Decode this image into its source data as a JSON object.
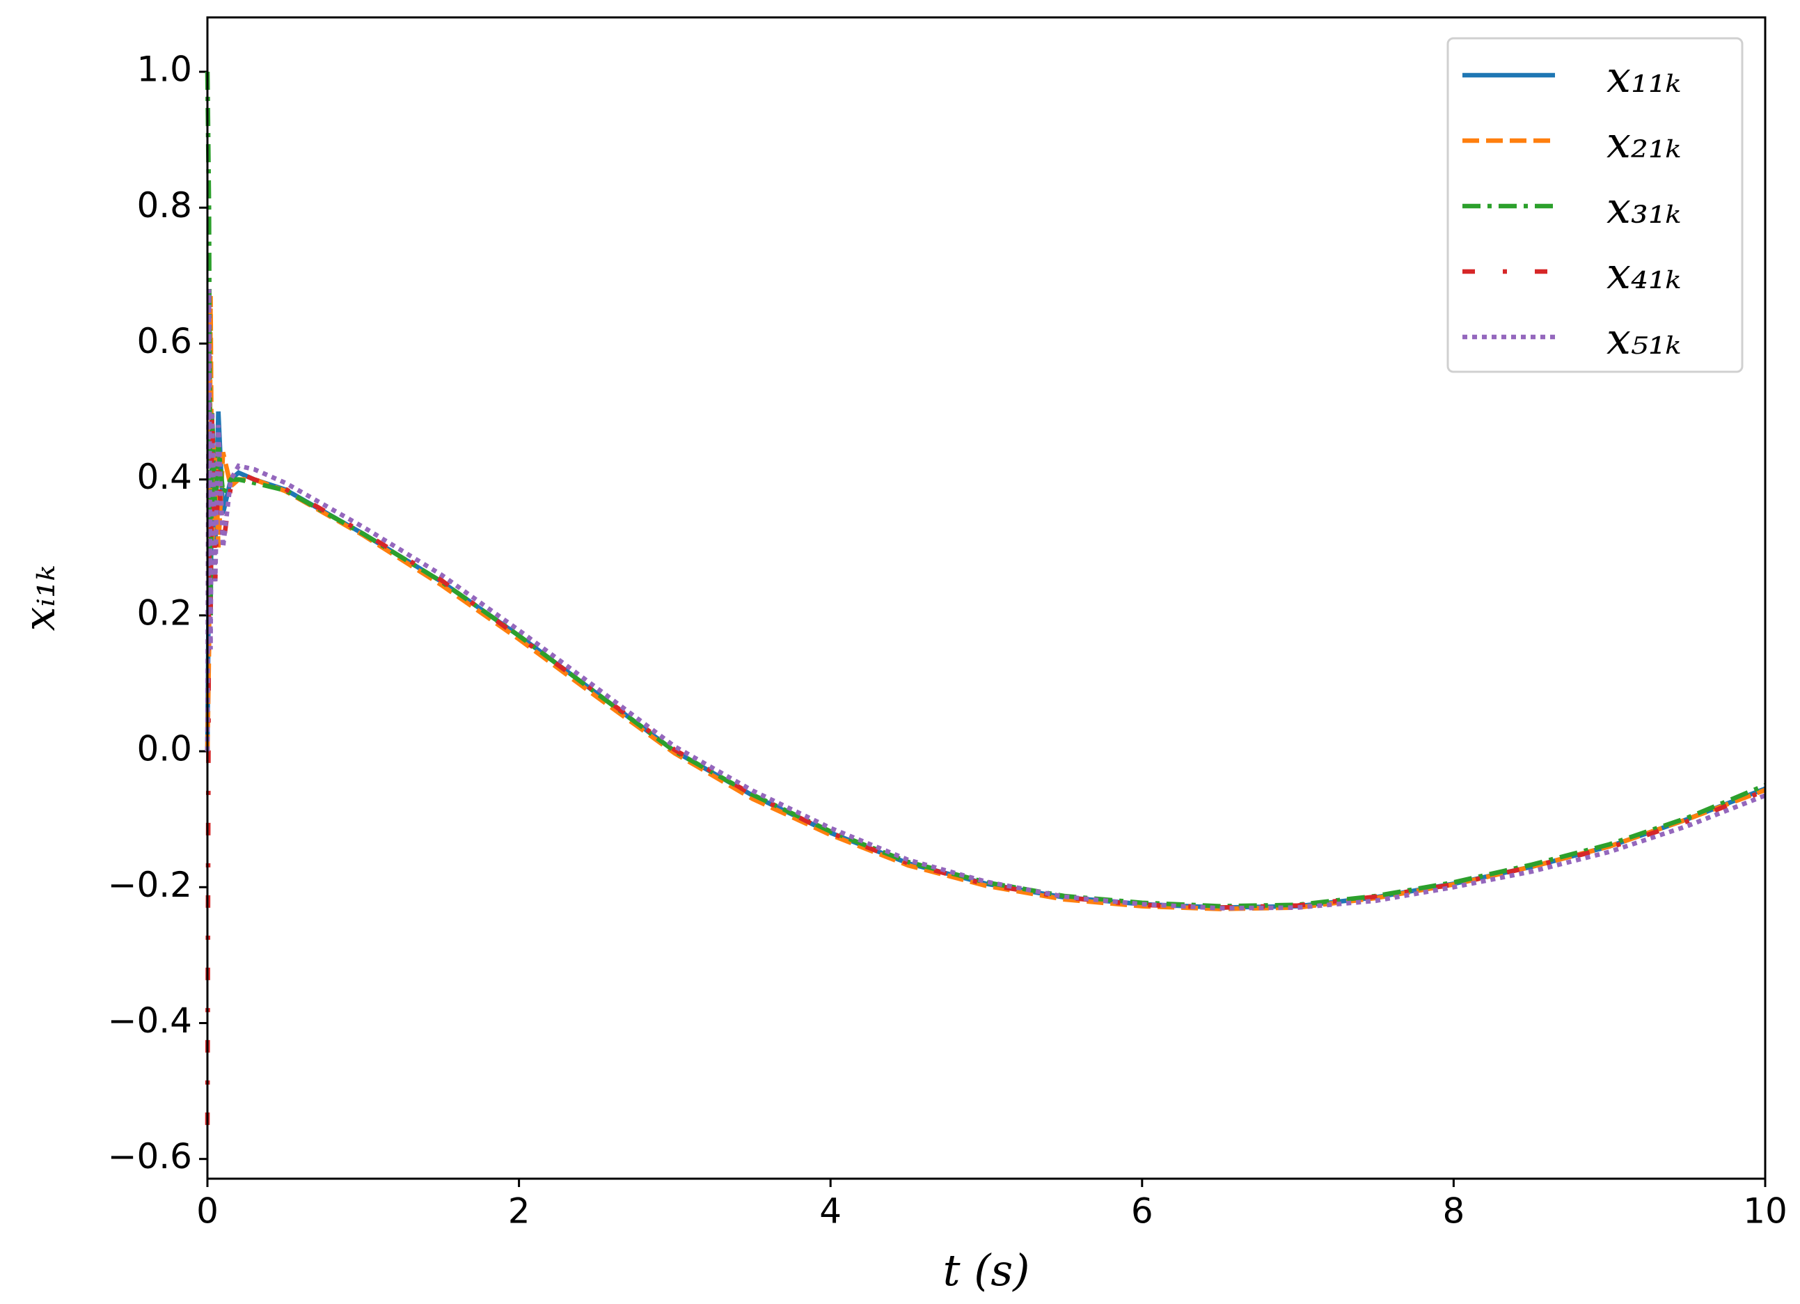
{
  "chart_data": {
    "type": "line",
    "x_label": "t (s)",
    "y_label": "xᵢ₁ₖ",
    "x": [
      0,
      0.01,
      0.02,
      0.03,
      0.05,
      0.07,
      0.1,
      0.15,
      0.2,
      0.3,
      0.5,
      1,
      1.5,
      2,
      2.5,
      3,
      3.5,
      4,
      4.5,
      5,
      5.5,
      6,
      6.5,
      7,
      7.5,
      8,
      8.5,
      9,
      9.5,
      10
    ],
    "series": [
      {
        "name": "x₁₁ₖ",
        "color": "#1f77b4",
        "linestyle": "solid",
        "values": [
          0.0,
          0.3,
          0.2,
          0.45,
          0.3,
          0.5,
          0.35,
          0.4,
          0.41,
          0.4,
          0.385,
          0.32,
          0.25,
          0.17,
          0.085,
          0.0,
          -0.065,
          -0.12,
          -0.165,
          -0.195,
          -0.215,
          -0.225,
          -0.23,
          -0.228,
          -0.215,
          -0.195,
          -0.17,
          -0.14,
          -0.1,
          -0.055
        ]
      },
      {
        "name": "x₂₁ₖ",
        "color": "#ff7f0e",
        "linestyle": "dashed",
        "values": [
          0.0,
          0.15,
          0.67,
          0.3,
          0.45,
          0.3,
          0.44,
          0.39,
          0.4,
          0.4,
          0.383,
          0.318,
          0.245,
          0.165,
          0.08,
          -0.003,
          -0.07,
          -0.123,
          -0.168,
          -0.198,
          -0.218,
          -0.228,
          -0.232,
          -0.23,
          -0.216,
          -0.196,
          -0.17,
          -0.14,
          -0.1,
          -0.057
        ]
      },
      {
        "name": "x₃₁ₖ",
        "color": "#2ca02c",
        "linestyle": "dashdot",
        "values": [
          1.0,
          0.8,
          0.2,
          0.5,
          0.35,
          0.45,
          0.38,
          0.4,
          0.4,
          0.395,
          0.384,
          0.32,
          0.25,
          0.17,
          0.085,
          0.0,
          -0.064,
          -0.118,
          -0.163,
          -0.193,
          -0.213,
          -0.223,
          -0.228,
          -0.226,
          -0.213,
          -0.193,
          -0.167,
          -0.137,
          -0.098,
          -0.05
        ]
      },
      {
        "name": "x₄₁ₖ",
        "color": "#d62728",
        "linestyle": "loosedash",
        "values": [
          -0.55,
          0.3,
          0.2,
          0.5,
          0.25,
          0.42,
          0.3,
          0.39,
          0.41,
          0.4,
          0.386,
          0.322,
          0.252,
          0.168,
          0.086,
          0.002,
          -0.064,
          -0.12,
          -0.165,
          -0.196,
          -0.215,
          -0.226,
          -0.23,
          -0.227,
          -0.214,
          -0.196,
          -0.17,
          -0.142,
          -0.103,
          -0.058
        ]
      },
      {
        "name": "x₅₁ₖ",
        "color": "#9467bd",
        "linestyle": "dotted",
        "values": [
          0.0,
          0.68,
          0.15,
          0.5,
          0.25,
          0.48,
          0.3,
          0.4,
          0.42,
          0.415,
          0.395,
          0.33,
          0.26,
          0.178,
          0.093,
          0.007,
          -0.058,
          -0.113,
          -0.16,
          -0.192,
          -0.214,
          -0.225,
          -0.231,
          -0.23,
          -0.22,
          -0.2,
          -0.177,
          -0.148,
          -0.11,
          -0.065
        ]
      }
    ],
    "xlim": [
      0,
      10
    ],
    "xticks": [
      0,
      2,
      4,
      6,
      8,
      10
    ],
    "ylim": [
      -0.629,
      1.08
    ],
    "yticks": [
      {
        "value": -0.6,
        "label": "−0.6"
      },
      {
        "value": -0.4,
        "label": "−0.4"
      },
      {
        "value": -0.2,
        "label": "−0.2"
      },
      {
        "value": 0,
        "label": "0.0"
      },
      0.2,
      0.4,
      0.6,
      0.8,
      {
        "value": 1,
        "label": "1.0"
      }
    ],
    "grid": false,
    "legend": "upper right"
  }
}
